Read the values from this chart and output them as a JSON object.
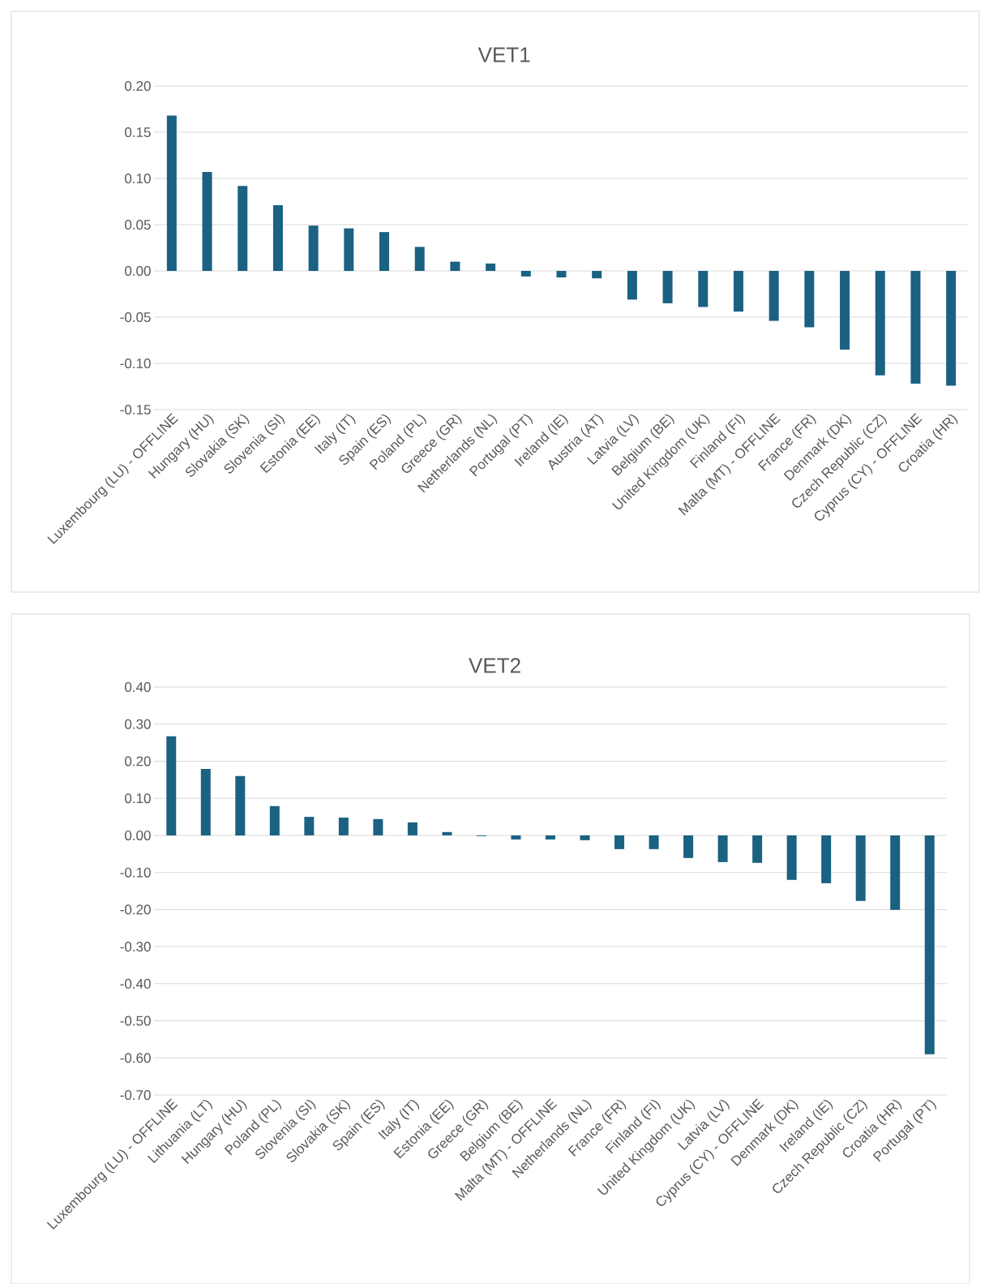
{
  "chart_data": [
    {
      "type": "bar",
      "title": "VET1",
      "color": "#1a6182",
      "grid": "y",
      "ylim": [
        -0.15,
        0.2
      ],
      "yticks": [
        {
          "value": -0.15,
          "label": "-0.15"
        },
        {
          "value": -0.1,
          "label": "-0.10"
        },
        {
          "value": -0.05,
          "label": "-0.05"
        },
        {
          "value": 0,
          "label": "0.00"
        },
        {
          "value": 0.05,
          "label": "0.05"
        },
        {
          "value": 0.1,
          "label": "0.10"
        },
        {
          "value": 0.15,
          "label": "0.15"
        },
        {
          "value": 0.2,
          "label": "0.20"
        }
      ],
      "categories": [
        "Luxembourg (LU) - OFFLINE",
        "Hungary (HU)",
        "Slovakia (SK)",
        "Slovenia (SI)",
        "Estonia (EE)",
        "Italy (IT)",
        "Spain (ES)",
        "Poland (PL)",
        "Greece (GR)",
        "Netherlands (NL)",
        "Portugal (PT)",
        "Ireland (IE)",
        "Austria (AT)",
        "Latvia (LV)",
        "Belgium (BE)",
        "United Kingdom (UK)",
        "Finland (FI)",
        "Malta (MT) - OFFLINE",
        "France (FR)",
        "Denmark (DK)",
        "Czech Republic (CZ)",
        "Cyprus (CY) - OFFLINE",
        "Croatia (HR)"
      ],
      "values": [
        0.168,
        0.107,
        0.092,
        0.071,
        0.049,
        0.046,
        0.042,
        0.026,
        0.01,
        0.008,
        -0.006,
        -0.007,
        -0.008,
        -0.031,
        -0.035,
        -0.039,
        -0.044,
        -0.054,
        -0.061,
        -0.085,
        -0.113,
        -0.122,
        -0.124
      ]
    },
    {
      "type": "bar",
      "title": "VET2",
      "color": "#1a6182",
      "grid": "y",
      "ylim": [
        -0.7,
        0.4
      ],
      "yticks": [
        {
          "value": -0.7,
          "label": "-0.70"
        },
        {
          "value": -0.6,
          "label": "-0.60"
        },
        {
          "value": -0.5,
          "label": "-0.50"
        },
        {
          "value": -0.4,
          "label": "-0.40"
        },
        {
          "value": -0.3,
          "label": "-0.30"
        },
        {
          "value": -0.2,
          "label": "-0.20"
        },
        {
          "value": -0.1,
          "label": "-0.10"
        },
        {
          "value": 0,
          "label": "0.00"
        },
        {
          "value": 0.1,
          "label": "0.10"
        },
        {
          "value": 0.2,
          "label": "0.20"
        },
        {
          "value": 0.3,
          "label": "0.30"
        },
        {
          "value": 0.4,
          "label": "0.40"
        }
      ],
      "categories": [
        "Luxembourg (LU) - OFFLINE",
        "Lithuania (LT)",
        "Hungary (HU)",
        "Poland (PL)",
        "Slovenia (SI)",
        "Slovakia (SK)",
        "Spain (ES)",
        "Italy (IT)",
        "Estonia (EE)",
        "Greece (GR)",
        "Belgium (BE)",
        "Malta (MT) - OFFLINE",
        "Netherlands (NL)",
        "France (FR)",
        "Finland (FI)",
        "United Kingdom (UK)",
        "Latvia (LV)",
        "Cyprus (CY) - OFFLINE",
        "Denmark (DK)",
        "Ireland (IE)",
        "Czech Republic (CZ)",
        "Croatia (HR)",
        "Portugal (PT)"
      ],
      "values": [
        0.267,
        0.179,
        0.16,
        0.079,
        0.05,
        0.048,
        0.044,
        0.035,
        0.009,
        -0.002,
        -0.011,
        -0.011,
        -0.013,
        -0.037,
        -0.037,
        -0.061,
        -0.072,
        -0.074,
        -0.12,
        -0.129,
        -0.177,
        -0.201,
        -0.59
      ]
    }
  ]
}
